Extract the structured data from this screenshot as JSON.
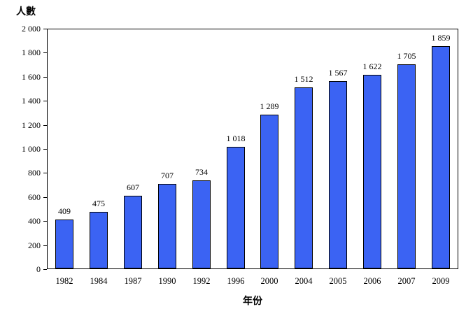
{
  "chart_data": {
    "type": "bar",
    "ylabel": "人數",
    "xlabel": "年份",
    "categories": [
      "1982",
      "1984",
      "1987",
      "1990",
      "1992",
      "1996",
      "2000",
      "2004",
      "2005",
      "2006",
      "2007",
      "2009"
    ],
    "values": [
      409,
      475,
      607,
      707,
      734,
      1018,
      1289,
      1512,
      1567,
      1622,
      1705,
      1859
    ],
    "value_labels": [
      "409",
      "475",
      "607",
      "707",
      "734",
      "1 018",
      "1 289",
      "1 512",
      "1 567",
      "1 622",
      "1 705",
      "1 859"
    ],
    "ylim": [
      0,
      2000
    ],
    "ytick_step": 200,
    "ytick_labels": [
      "0",
      "200",
      "400",
      "600",
      "800",
      "1 000",
      "1 200",
      "1 400",
      "1 600",
      "1 800",
      "2 000"
    ],
    "grid": false,
    "legend": false,
    "bar_color": "#3B63F3",
    "bar_border_color": "#000000",
    "axis_color": "#000000",
    "background_color": "#FFFFFF",
    "text_color": "#000000"
  }
}
